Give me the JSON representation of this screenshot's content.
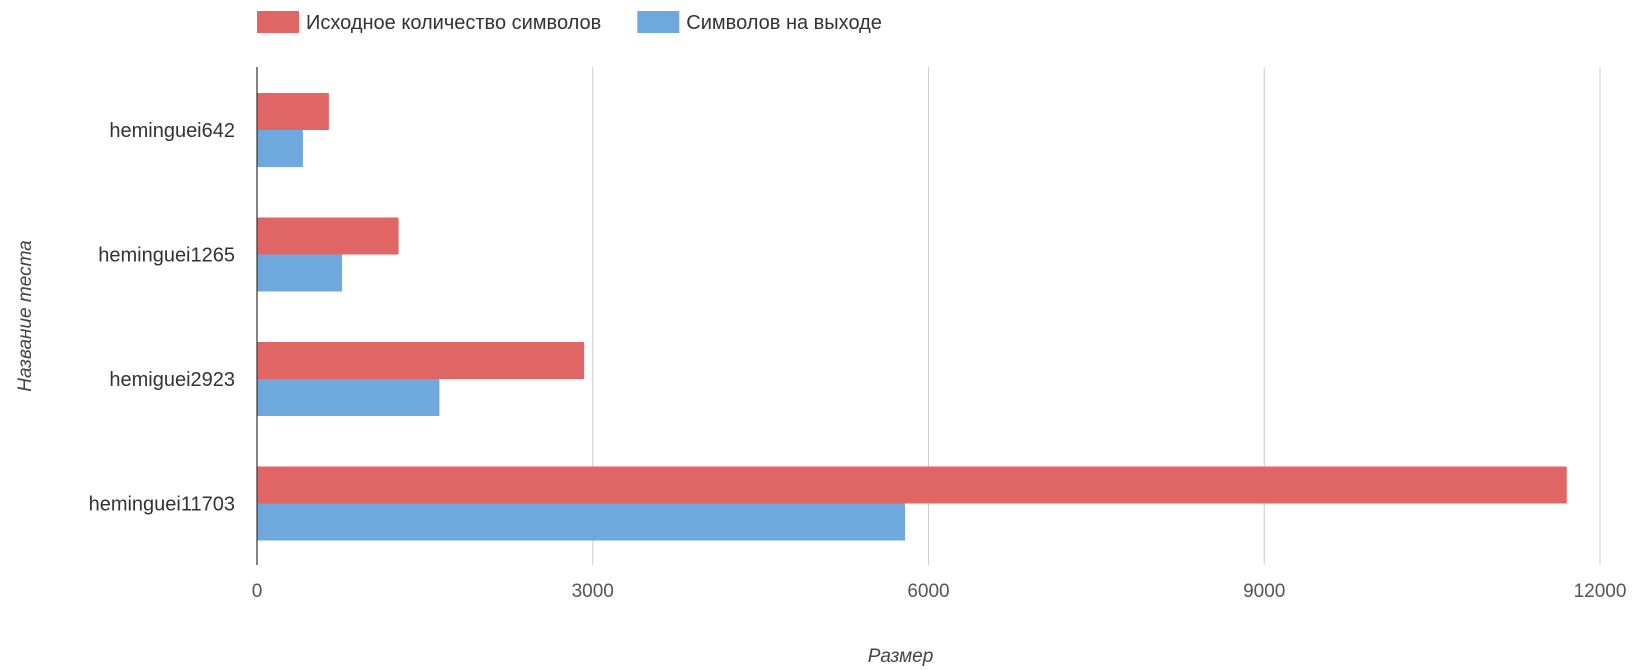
{
  "chart_data": {
    "type": "bar",
    "orientation": "horizontal",
    "categories": [
      "heminguei642",
      "heminguei1265",
      "hemiguei2923",
      "heminguei11703"
    ],
    "series": [
      {
        "name": "Исходное количество символов",
        "color": "#e06666",
        "values": [
          642,
          1265,
          2923,
          11703
        ]
      },
      {
        "name": "Символов на выходе",
        "color": "#6fa8dc",
        "values": [
          410,
          760,
          1630,
          5790
        ]
      }
    ],
    "xlabel": "Размер",
    "ylabel": "Название теста",
    "xlim": [
      0,
      12000
    ],
    "xticks": [
      0,
      3000,
      6000,
      9000,
      12000
    ],
    "xtick_labels": [
      "0",
      "3000",
      "6000",
      "9000",
      "12000"
    ],
    "grid": "vertical",
    "legend_position": "top-left",
    "axis_color": "#333333",
    "grid_color": "#cccccc"
  }
}
